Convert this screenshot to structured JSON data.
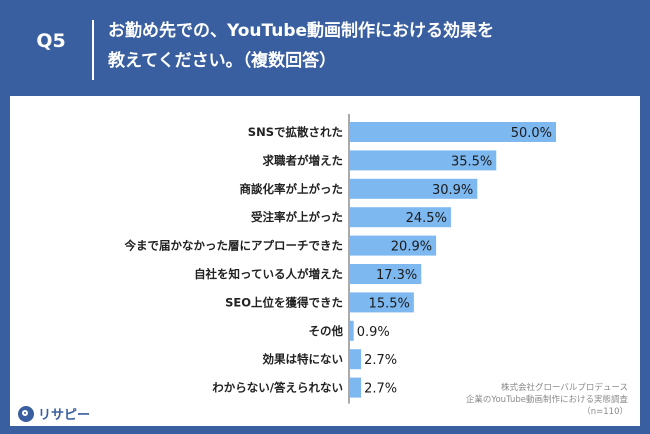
{
  "header": {
    "question_number": "Q5",
    "title_line1": "お勤め先での、YouTube動画制作における効果を",
    "title_line2": "教えてください。（複数回答）"
  },
  "source": {
    "line1": "株式会社グローバルプロデュース",
    "line2": "企業のYouTube動画制作における実態調査",
    "line3": "（n=110）"
  },
  "brand": {
    "name": "リサピー"
  },
  "colors": {
    "header_bg": "#3a5fa0",
    "bar": "#7eb8f0"
  },
  "chart_data": {
    "type": "bar",
    "orientation": "horizontal",
    "categories": [
      "SNSで拡散された",
      "求職者が増えた",
      "商談化率が上がった",
      "受注率が上がった",
      "今まで届かなかった層にアプローチできた",
      "自社を知っている人が増えた",
      "SEO上位を獲得できた",
      "その他",
      "効果は特にない",
      "わからない/答えられない"
    ],
    "values": [
      50.0,
      35.5,
      30.9,
      24.5,
      20.9,
      17.3,
      15.5,
      0.9,
      2.7,
      2.7
    ],
    "value_labels": [
      "50.0%",
      "35.5%",
      "30.9%",
      "24.5%",
      "20.9%",
      "17.3%",
      "15.5%",
      "0.9%",
      "2.7%",
      "2.7%"
    ],
    "xlim": [
      0,
      50
    ],
    "grid": false
  }
}
